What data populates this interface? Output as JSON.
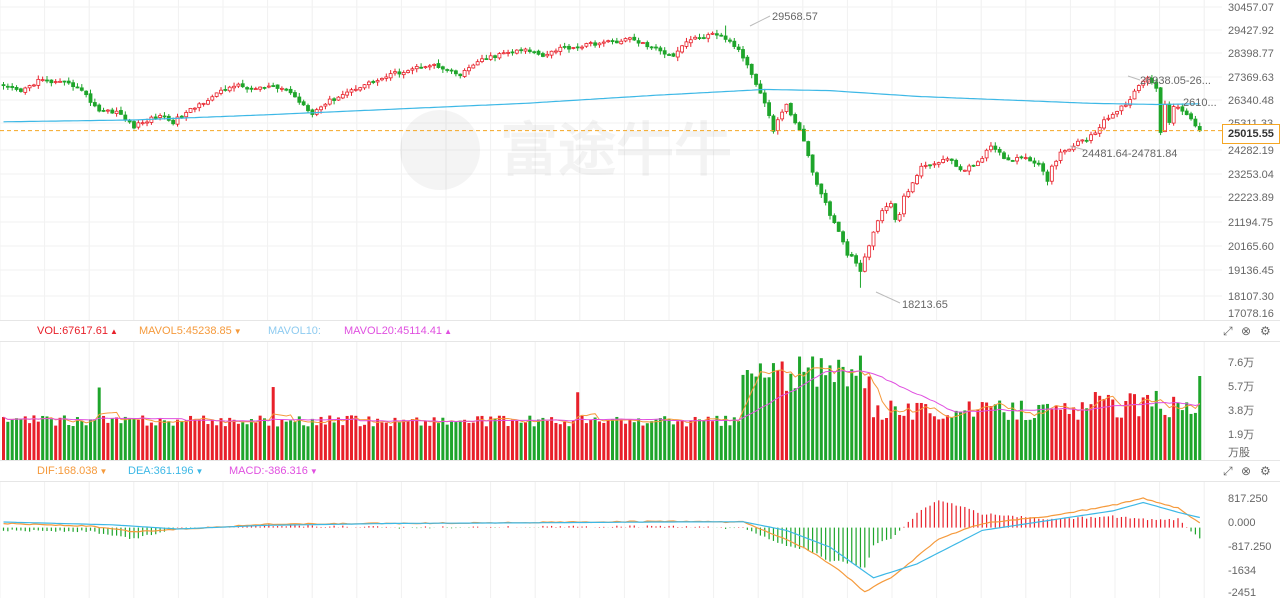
{
  "colors": {
    "up": "#e8202a",
    "down": "#1ea52b",
    "ma_price": "#3db8e6",
    "last_price": "#f5a623",
    "mavol5": "#f59a3c",
    "mavol10": "#8ecbf0",
    "mavol20": "#e050e0",
    "dif": "#f59a3c",
    "dea": "#3db8e6",
    "macd": "#e050e0",
    "vol_label": "#e8202a"
  },
  "watermark": "富途牛牛",
  "price_panel": {
    "last_price": "25015.55",
    "high_note": "29568.57",
    "low_note": "18213.65",
    "range_note": "24481.64-24781.84",
    "recent_high_note": "26938.05-26...",
    "recent_note": "2610...",
    "axis_labels": [
      "30457.07",
      "29427.92",
      "28398.77",
      "27369.63",
      "26340.48",
      "25311.33",
      "24282.19",
      "23253.04",
      "22223.89",
      "21194.75",
      "20165.60",
      "19136.45",
      "18107.30",
      "17078.16"
    ]
  },
  "volume_panel": {
    "vol": "VOL:67617.61",
    "mavol5": "MAVOL5:45238.85",
    "mavol10": "MAVOL10:",
    "mavol20": "MAVOL20:45114.41",
    "axis_labels": [
      "7.6万",
      "5.7万",
      "3.8万",
      "1.9万"
    ],
    "unit": "万股"
  },
  "macd_panel": {
    "dif": "DIF:168.038",
    "dea": "DEA:361.196",
    "macd": "MACD:-386.316",
    "axis_labels": [
      "817.250",
      "0.000",
      "-817.250",
      "-1634",
      "-2451"
    ]
  },
  "icons": {
    "expand": "expand-icon",
    "close": "close-icon",
    "settings": "gear-icon"
  },
  "chart_data": {
    "type": "candlestick",
    "title": "",
    "ylim": [
      17078.16,
      30457.07
    ],
    "price_keyframes": [
      [
        0,
        26900
      ],
      [
        4,
        26700
      ],
      [
        8,
        27200
      ],
      [
        12,
        27100
      ],
      [
        17,
        26950
      ],
      [
        20,
        26300
      ],
      [
        22,
        25900
      ],
      [
        26,
        25850
      ],
      [
        28,
        25500
      ],
      [
        30,
        25200
      ],
      [
        33,
        25450
      ],
      [
        36,
        25700
      ],
      [
        39,
        25400
      ],
      [
        43,
        25900
      ],
      [
        47,
        26400
      ],
      [
        50,
        26700
      ],
      [
        53,
        27000
      ],
      [
        57,
        26800
      ],
      [
        61,
        26900
      ],
      [
        65,
        26800
      ],
      [
        68,
        26300
      ],
      [
        71,
        25800
      ],
      [
        74,
        26200
      ],
      [
        78,
        26600
      ],
      [
        82,
        26950
      ],
      [
        86,
        27200
      ],
      [
        90,
        27500
      ],
      [
        94,
        27700
      ],
      [
        98,
        27900
      ],
      [
        102,
        27600
      ],
      [
        105,
        27400
      ],
      [
        108,
        27900
      ],
      [
        112,
        28200
      ],
      [
        116,
        28400
      ],
      [
        120,
        28500
      ],
      [
        124,
        28300
      ],
      [
        128,
        28600
      ],
      [
        132,
        28650
      ],
      [
        136,
        28800
      ],
      [
        140,
        28850
      ],
      [
        144,
        29000
      ],
      [
        148,
        28700
      ],
      [
        151,
        28450
      ],
      [
        154,
        28300
      ],
      [
        157,
        28900
      ],
      [
        160,
        29050
      ],
      [
        163,
        29150
      ],
      [
        166,
        29000
      ],
      [
        168,
        28700
      ],
      [
        170,
        28200
      ],
      [
        172,
        27500
      ],
      [
        174,
        26700
      ],
      [
        176,
        25700
      ],
      [
        177,
        25000
      ],
      [
        178,
        25500
      ],
      [
        180,
        26100
      ],
      [
        182,
        25400
      ],
      [
        184,
        24600
      ],
      [
        186,
        23200
      ],
      [
        188,
        22300
      ],
      [
        190,
        21400
      ],
      [
        192,
        20600
      ],
      [
        194,
        19700
      ],
      [
        196,
        19300
      ],
      [
        197,
        18850
      ],
      [
        198,
        19500
      ],
      [
        200,
        20600
      ],
      [
        202,
        21600
      ],
      [
        204,
        21800
      ],
      [
        205,
        21200
      ],
      [
        206,
        21400
      ],
      [
        207,
        22100
      ],
      [
        209,
        22800
      ],
      [
        211,
        23400
      ],
      [
        213,
        23550
      ],
      [
        215,
        23700
      ],
      [
        217,
        23800
      ],
      [
        219,
        23500
      ],
      [
        221,
        23300
      ],
      [
        223,
        23500
      ],
      [
        225,
        23900
      ],
      [
        227,
        24300
      ],
      [
        229,
        24000
      ],
      [
        231,
        23700
      ],
      [
        233,
        23900
      ],
      [
        235,
        23850
      ],
      [
        237,
        23700
      ],
      [
        239,
        23300
      ],
      [
        240,
        22900
      ],
      [
        241,
        23500
      ],
      [
        243,
        24000
      ],
      [
        246,
        24400
      ],
      [
        249,
        24650
      ],
      [
        251,
        24950
      ],
      [
        253,
        25500
      ],
      [
        255,
        25700
      ],
      [
        257,
        26000
      ],
      [
        259,
        26400
      ],
      [
        261,
        26900
      ],
      [
        262,
        27200
      ],
      [
        263,
        27300
      ],
      [
        264,
        27100
      ],
      [
        265,
        26800
      ],
      [
        266,
        25000
      ],
      [
        267,
        26200
      ],
      [
        268,
        25400
      ],
      [
        269,
        26100
      ],
      [
        271,
        25900
      ],
      [
        273,
        25600
      ],
      [
        274,
        25300
      ],
      [
        275,
        25015.55
      ]
    ],
    "ma_keyframes": [
      [
        0,
        25400
      ],
      [
        30,
        25480
      ],
      [
        60,
        25700
      ],
      [
        90,
        25950
      ],
      [
        120,
        26200
      ],
      [
        150,
        26550
      ],
      [
        175,
        26800
      ],
      [
        190,
        26750
      ],
      [
        210,
        26500
      ],
      [
        230,
        26350
      ],
      [
        250,
        26200
      ],
      [
        265,
        26150
      ],
      [
        275,
        26180
      ]
    ],
    "high_index": 166,
    "low_index": 197,
    "volume_ylim": [
      0,
      95000
    ],
    "volume_ticks": [
      76000,
      57000,
      38000,
      19000
    ],
    "macd_ylim": [
      -2451,
      1634
    ],
    "macd_ticks": [
      817.25,
      0,
      -817.25,
      -1634,
      -2451
    ],
    "last_dif": 168.038,
    "last_dea": 361.196,
    "last_macd": -386.316
  }
}
